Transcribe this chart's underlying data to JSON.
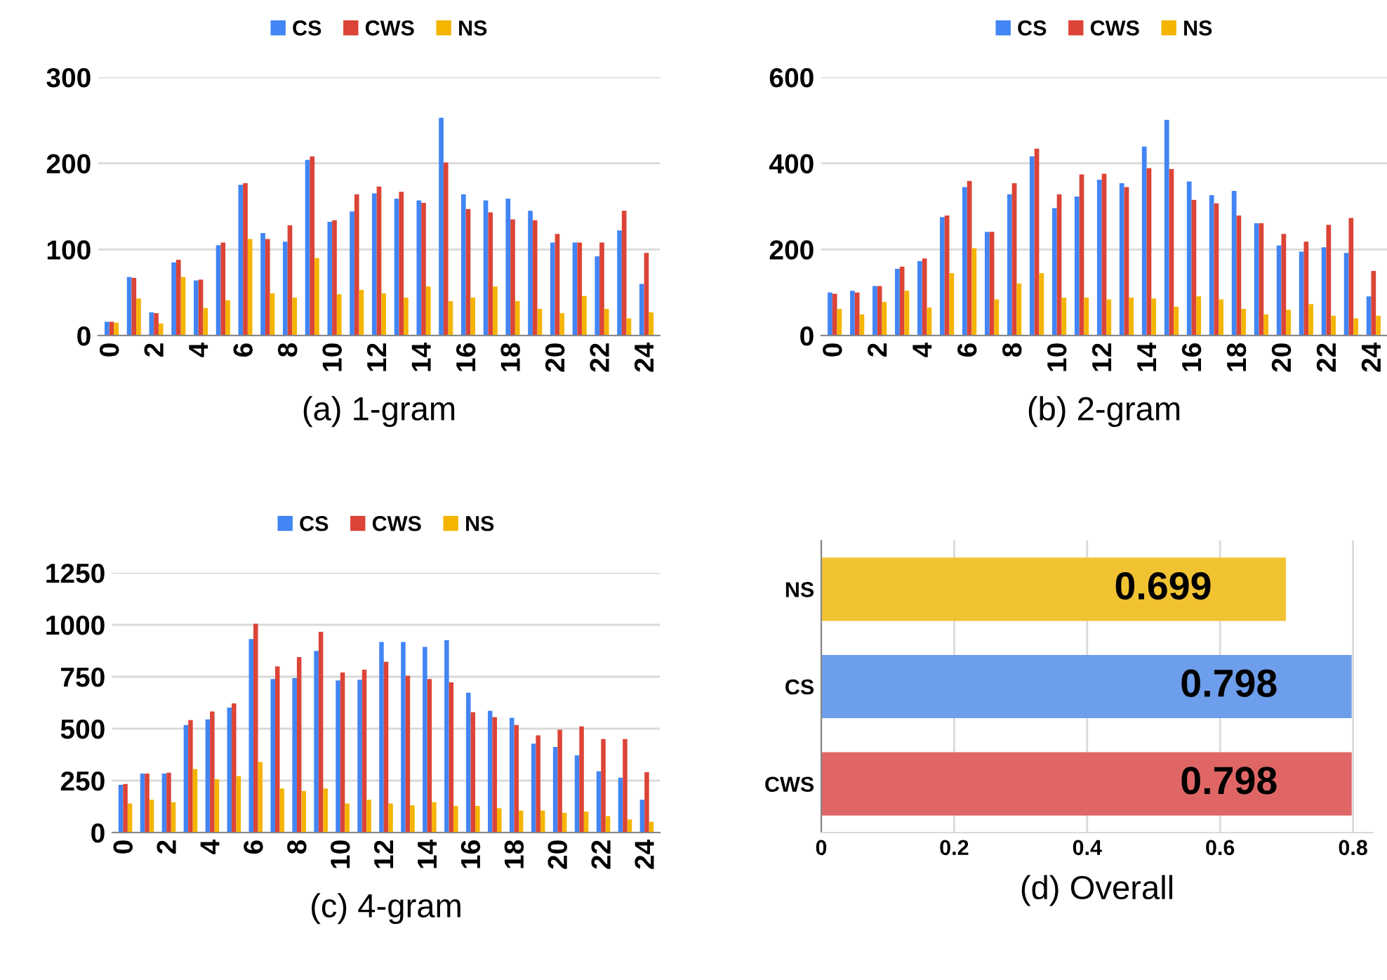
{
  "chart_data": [
    {
      "type": "bar",
      "xlabel": "(a) 1-gram",
      "categories": [
        "0",
        null,
        "2",
        null,
        "4",
        null,
        "6",
        null,
        "8",
        null,
        "10",
        null,
        "12",
        null,
        "14",
        null,
        "16",
        null,
        "18",
        null,
        "20",
        null,
        "22",
        null,
        "24"
      ],
      "series": [
        {
          "name": "CS",
          "color": "#4285f4",
          "values": [
            16,
            68,
            27,
            85,
            64,
            105,
            175,
            119,
            109,
            204,
            132,
            144,
            165,
            159,
            157,
            253,
            164,
            157,
            159,
            145,
            108,
            108,
            92,
            122,
            60
          ]
        },
        {
          "name": "CWS",
          "color": "#db4437",
          "values": [
            16,
            67,
            26,
            88,
            65,
            108,
            177,
            112,
            128,
            208,
            134,
            164,
            173,
            167,
            154,
            201,
            147,
            143,
            135,
            134,
            118,
            108,
            108,
            145,
            96
          ]
        },
        {
          "name": "NS",
          "color": "#f4b400",
          "values": [
            15,
            43,
            14,
            68,
            32,
            41,
            112,
            49,
            44,
            90,
            48,
            53,
            49,
            44,
            57,
            40,
            44,
            57,
            40,
            31,
            26,
            46,
            31,
            20,
            27
          ]
        }
      ],
      "ylim": [
        0,
        300
      ],
      "yticks": [
        0,
        100,
        200,
        300
      ],
      "grid": "y",
      "legend": "top"
    },
    {
      "type": "bar",
      "xlabel": "(b) 2-gram",
      "categories": [
        "0",
        null,
        "2",
        null,
        "4",
        null,
        "6",
        null,
        "8",
        null,
        "10",
        null,
        "12",
        null,
        "14",
        null,
        "16",
        null,
        "18",
        null,
        "20",
        null,
        "22",
        null,
        "24"
      ],
      "series": [
        {
          "name": "CS",
          "color": "#4285f4",
          "values": [
            100,
            104,
            115,
            155,
            173,
            275,
            345,
            241,
            328,
            416,
            296,
            323,
            362,
            354,
            439,
            501,
            358,
            326,
            336,
            261,
            209,
            195,
            205,
            192,
            91
          ]
        },
        {
          "name": "CWS",
          "color": "#db4437",
          "values": [
            97,
            100,
            115,
            160,
            179,
            279,
            359,
            241,
            354,
            434,
            328,
            374,
            376,
            345,
            389,
            387,
            315,
            307,
            279,
            261,
            236,
            218,
            257,
            273,
            150
          ]
        },
        {
          "name": "NS",
          "color": "#f4b400",
          "values": [
            62,
            49,
            78,
            104,
            65,
            145,
            203,
            84,
            121,
            145,
            88,
            88,
            84,
            88,
            86,
            67,
            91,
            84,
            62,
            49,
            60,
            73,
            46,
            40,
            46
          ]
        }
      ],
      "ylim": [
        0,
        600
      ],
      "yticks": [
        0,
        200,
        400,
        600
      ],
      "grid": "y",
      "legend": "top"
    },
    {
      "type": "bar",
      "xlabel": "(c) 4-gram",
      "categories": [
        "0",
        null,
        "2",
        null,
        "4",
        null,
        "6",
        null,
        "8",
        null,
        "10",
        null,
        "12",
        null,
        "14",
        null,
        "16",
        null,
        "18",
        null,
        "20",
        null,
        "22",
        null,
        "24"
      ],
      "series": [
        {
          "name": "CS",
          "color": "#4285f4",
          "values": [
            230,
            284,
            284,
            518,
            545,
            601,
            932,
            739,
            743,
            874,
            732,
            736,
            917,
            917,
            894,
            926,
            673,
            586,
            552,
            428,
            412,
            372,
            295,
            264,
            158
          ]
        },
        {
          "name": "CWS",
          "color": "#db4437",
          "values": [
            234,
            284,
            288,
            541,
            583,
            622,
            1005,
            800,
            845,
            966,
            770,
            784,
            822,
            755,
            739,
            723,
            579,
            556,
            518,
            468,
            495,
            511,
            450,
            450,
            291
          ]
        },
        {
          "name": "NS",
          "color": "#f4b400",
          "values": [
            140,
            158,
            146,
            306,
            257,
            272,
            340,
            212,
            200,
            212,
            140,
            158,
            140,
            131,
            146,
            128,
            128,
            117,
            106,
            106,
            95,
            101,
            79,
            63,
            52
          ]
        }
      ],
      "ylim": [
        0,
        1250
      ],
      "yticks": [
        0,
        250,
        500,
        750,
        1000,
        1250
      ],
      "grid": "y",
      "legend": "top"
    },
    {
      "type": "bar",
      "orientation": "horizontal",
      "xlabel": "(d) Overall",
      "categories": [
        "NS",
        "CS",
        "CWS"
      ],
      "values": [
        0.699,
        0.798,
        0.798
      ],
      "colors": [
        "#f1c232",
        "#6d9eeb",
        "#e06666"
      ],
      "xlim": [
        0,
        0.83
      ],
      "xticks": [
        0,
        0.2,
        0.4,
        0.6,
        0.8
      ],
      "grid": "x",
      "data_labels": true
    }
  ]
}
